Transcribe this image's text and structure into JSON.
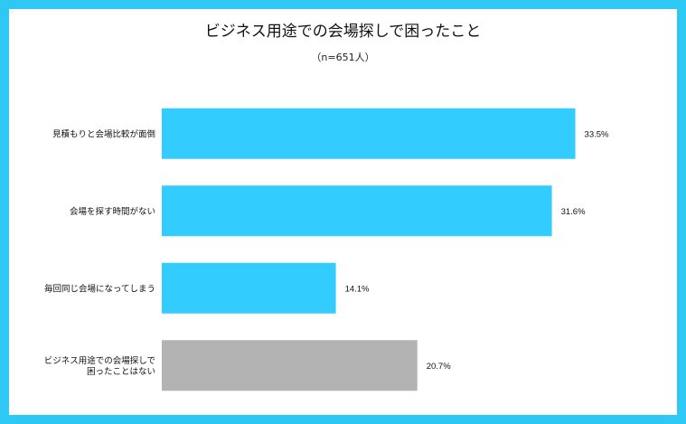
{
  "chart_data": {
    "type": "bar",
    "orientation": "horizontal",
    "title": "ビジネス用途での会場探しで困ったこと",
    "subtitle": "（n=651人）",
    "categories": [
      [
        "見積もりと会場比較が面倒"
      ],
      [
        "会場を探す時間がない"
      ],
      [
        "毎回同じ会場になってしまう"
      ],
      [
        "ビジネス用途での会場探しで",
        "困ったことはない"
      ]
    ],
    "values": [
      33.5,
      31.6,
      14.1,
      20.7
    ],
    "value_labels": [
      "33.5%",
      "31.6%",
      "14.1%",
      "20.7%"
    ],
    "colors": [
      "#33ccff",
      "#33ccff",
      "#33ccff",
      "#b3b3b3"
    ],
    "xlim": [
      0,
      38
    ],
    "grid": false,
    "legend": "none",
    "frame_color": "#2ec8f5"
  }
}
